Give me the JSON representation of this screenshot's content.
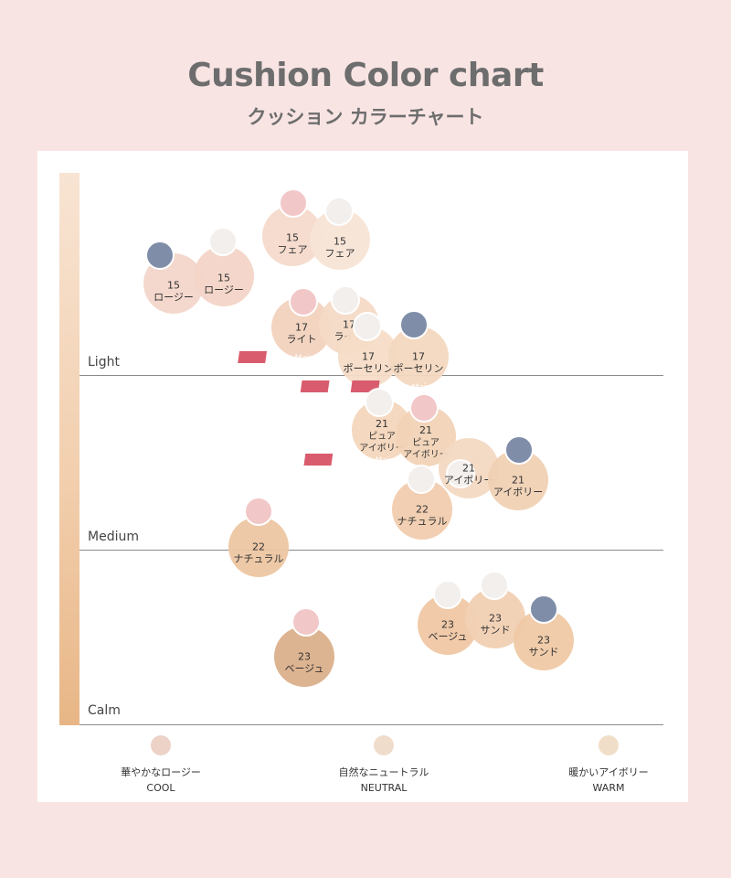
{
  "header": {
    "title": "Cushion Color chart",
    "subtitle": "クッション カラーチャート"
  },
  "levels": [
    {
      "label": "Light"
    },
    {
      "label": "Medium"
    },
    {
      "label": "Calm"
    }
  ],
  "legend": [
    {
      "jp": "華やかなロージー",
      "en": "COOL",
      "color": "#ecd2c7"
    },
    {
      "jp": "自然なニュートラル",
      "en": "NEUTRAL",
      "color": "#f0dccb"
    },
    {
      "jp": "暖かいアイボリー",
      "en": "WARM",
      "color": "#f1dec8"
    }
  ],
  "chart_data": {
    "type": "scatter",
    "title": "Cushion Color chart",
    "xlabel": "",
    "ylabel": "",
    "x_categories": [
      "COOL",
      "NEUTRAL",
      "WARM"
    ],
    "y_levels": [
      "Light",
      "Medium",
      "Calm"
    ],
    "grid": false,
    "cap_colors": {
      "pink": "#f2c7c8",
      "white": "#f2efec",
      "blue": "#7f8da8"
    },
    "swatches": [
      {
        "shade": "15",
        "name": "ロージー",
        "tone": "COOL",
        "level": "Light",
        "cap": "blue",
        "color": "#f3d6ca",
        "main": false
      },
      {
        "shade": "15",
        "name": "ロージー",
        "tone": "COOL",
        "level": "Light",
        "cap": "white",
        "color": "#f3d5c7",
        "main": false
      },
      {
        "shade": "15",
        "name": "フェア",
        "tone": "NEUTRAL",
        "level": "Light",
        "cap": "pink",
        "color": "#f4dacb",
        "main": false
      },
      {
        "shade": "15",
        "name": "フェア",
        "tone": "NEUTRAL",
        "level": "Light",
        "cap": "white",
        "color": "#f7e4d6",
        "main": false
      },
      {
        "shade": "17",
        "name": "ライト",
        "tone": "NEUTRAL",
        "level": "Light",
        "cap": "pink",
        "color": "#f2d2bd",
        "main": true
      },
      {
        "shade": "17",
        "name": "ライト",
        "tone": "NEUTRAL",
        "level": "Light",
        "cap": "white",
        "color": "#f4dac6",
        "main": false
      },
      {
        "shade": "17",
        "name": "ポーセリン",
        "tone": "NEUTRAL",
        "level": "Light",
        "cap": "white",
        "color": "#f5dcc7",
        "main": true
      },
      {
        "shade": "17",
        "name": "ポーセリン",
        "tone": "WARM",
        "level": "Light",
        "cap": "blue",
        "color": "#f3d8c0",
        "main": true
      },
      {
        "shade": "21",
        "name": "ピュアアイボリー",
        "tone": "NEUTRAL",
        "level": "Medium",
        "cap": "white",
        "color": "#f3d6bc",
        "main": true
      },
      {
        "shade": "21",
        "name": "ピュアアイボリー",
        "tone": "NEUTRAL",
        "level": "Medium",
        "cap": "pink",
        "color": "#f1d3b6",
        "main": false
      },
      {
        "shade": "21",
        "name": "アイボリー",
        "tone": "WARM",
        "level": "Medium",
        "cap": "white",
        "color": "#f3d9c2",
        "main": false
      },
      {
        "shade": "21",
        "name": "アイボリー",
        "tone": "WARM",
        "level": "Medium",
        "cap": "blue",
        "color": "#f0d1b4",
        "main": false
      },
      {
        "shade": "22",
        "name": "ナチュラル",
        "tone": "NEUTRAL",
        "level": "Medium",
        "cap": "white",
        "color": "#f1ccae",
        "main": false
      },
      {
        "shade": "22",
        "name": "ナチュラル",
        "tone": "COOL",
        "level": "Medium",
        "cap": "pink",
        "color": "#edc6a2",
        "main": false
      },
      {
        "shade": "23",
        "name": "ベージュ",
        "tone": "NEUTRAL",
        "level": "Calm",
        "cap": "white",
        "color": "#efc7a4",
        "main": false
      },
      {
        "shade": "23",
        "name": "サンド",
        "tone": "WARM",
        "level": "Calm",
        "cap": "white",
        "color": "#f1d0b3",
        "main": false
      },
      {
        "shade": "23",
        "name": "サンド",
        "tone": "WARM",
        "level": "Calm",
        "cap": "blue",
        "color": "#efc9a5",
        "main": false
      },
      {
        "shade": "23",
        "name": "ベージュ",
        "tone": "COOL",
        "level": "Calm",
        "cap": "pink",
        "color": "#dbb08b",
        "main": false
      }
    ],
    "main_label": "Main"
  }
}
